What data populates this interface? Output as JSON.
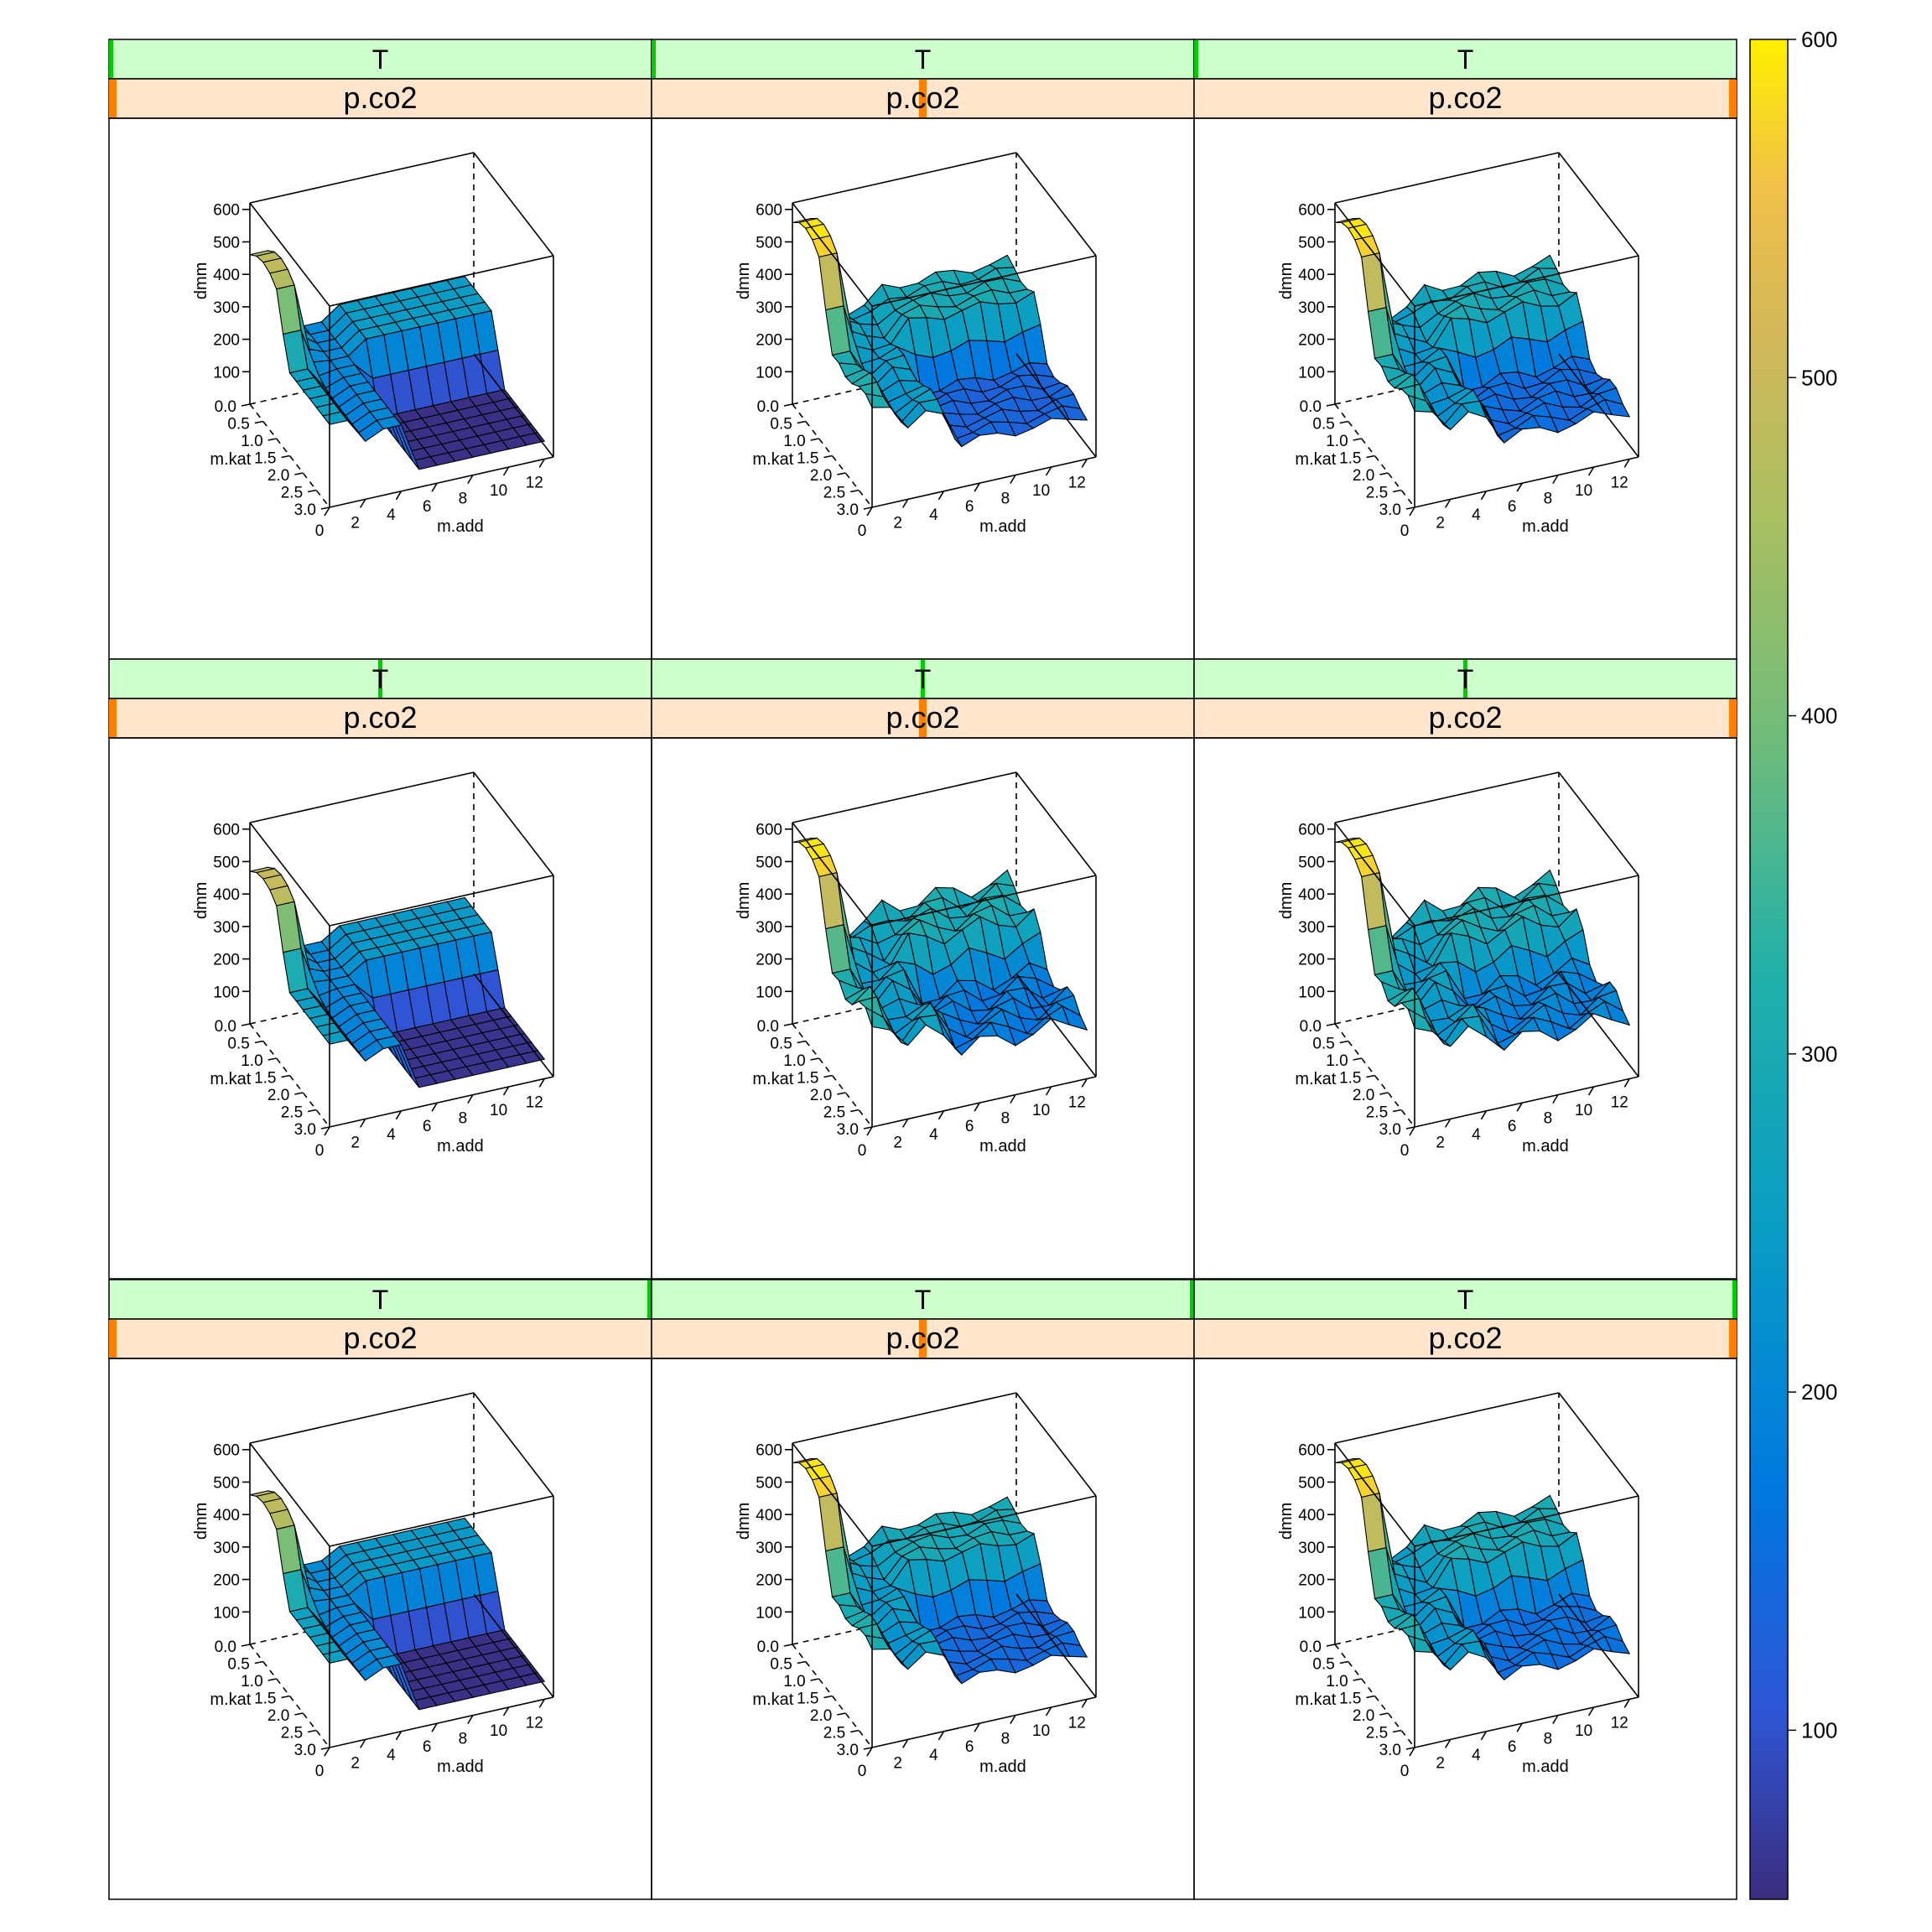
{
  "chart_data": {
    "type": "surface3d",
    "layout": "3x3 lattice (wireframe / drape plot)",
    "strip_labels": {
      "top": "T",
      "bottom": "p.co2"
    },
    "xlabel": "m.add",
    "ylabel": "m.kat",
    "zlabel": "dmm",
    "x_ticks": [
      "0",
      "2",
      "4",
      "6",
      "8",
      "10",
      "12"
    ],
    "y_ticks": [
      "0.0",
      "0.5",
      "1.0",
      "1.5",
      "2.0",
      "2.5",
      "3.0"
    ],
    "z_ticks": [
      "100",
      "200",
      "300",
      "400",
      "500",
      "600"
    ],
    "xlim": [
      0,
      12.5
    ],
    "ylim": [
      0,
      3
    ],
    "zlim": [
      0,
      620
    ],
    "colorkey": {
      "range": [
        50,
        600
      ],
      "ticks": [
        "100",
        "200",
        "300",
        "400",
        "500",
        "600"
      ],
      "palette": [
        "#3b2d7e",
        "#2f55d4",
        "#0078e0",
        "#0a9dc4",
        "#22b0a8",
        "#6ebc7c",
        "#a8bf62",
        "#d2b85a",
        "#f0c04a",
        "#fff000"
      ]
    },
    "panels": [
      {
        "row": 1,
        "col": 1,
        "strip_T_mark": 0.0,
        "strip_p_mark": 0.0,
        "peak": 490,
        "mid": 255,
        "plateau": 245,
        "valley": 55,
        "wave": 0
      },
      {
        "row": 1,
        "col": 2,
        "strip_T_mark": 0.0,
        "strip_p_mark": 0.5,
        "peak": 595,
        "mid": 310,
        "plateau": 295,
        "valley": 135,
        "wave": 15
      },
      {
        "row": 1,
        "col": 3,
        "strip_T_mark": 0.0,
        "strip_p_mark": 1.0,
        "peak": 595,
        "mid": 300,
        "plateau": 290,
        "valley": 150,
        "wave": 20
      },
      {
        "row": 2,
        "col": 1,
        "strip_T_mark": 0.5,
        "strip_p_mark": 0.0,
        "peak": 500,
        "mid": 255,
        "plateau": 240,
        "valley": 60,
        "wave": 0
      },
      {
        "row": 2,
        "col": 2,
        "strip_T_mark": 0.5,
        "strip_p_mark": 0.5,
        "peak": 595,
        "mid": 315,
        "plateau": 295,
        "valley": 180,
        "wave": 30
      },
      {
        "row": 2,
        "col": 3,
        "strip_T_mark": 0.5,
        "strip_p_mark": 1.0,
        "peak": 595,
        "mid": 310,
        "plateau": 295,
        "valley": 195,
        "wave": 30
      },
      {
        "row": 3,
        "col": 1,
        "strip_T_mark": 1.0,
        "strip_p_mark": 0.0,
        "peak": 490,
        "mid": 260,
        "plateau": 240,
        "valley": 55,
        "wave": 0
      },
      {
        "row": 3,
        "col": 2,
        "strip_T_mark": 1.0,
        "strip_p_mark": 0.5,
        "peak": 595,
        "mid": 305,
        "plateau": 290,
        "valley": 145,
        "wave": 15
      },
      {
        "row": 3,
        "col": 3,
        "strip_T_mark": 1.0,
        "strip_p_mark": 1.0,
        "peak": 595,
        "mid": 300,
        "plateau": 290,
        "valley": 160,
        "wave": 20
      }
    ]
  },
  "colors": {
    "strip_T_bg": "#ccffcc",
    "strip_T_mark": "#00cc00",
    "strip_p_bg": "#ffe5cc",
    "strip_p_mark": "#ff7f00",
    "frame": "#000000",
    "mesh": "#000000"
  }
}
